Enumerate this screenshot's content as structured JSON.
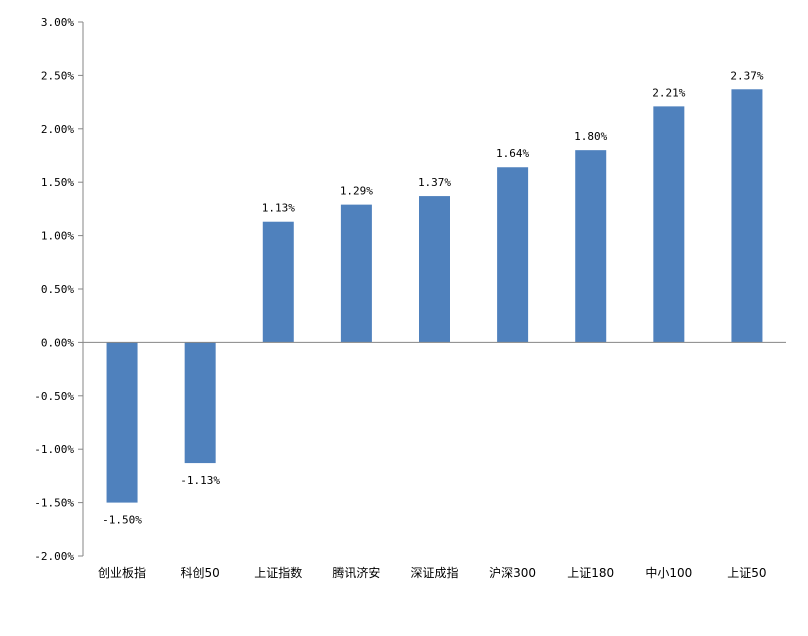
{
  "chart_data": {
    "type": "bar",
    "title": "",
    "xlabel": "",
    "ylabel": "",
    "categories": [
      "创业板指",
      "科创50",
      "上证指数",
      "腾讯济安",
      "深证成指",
      "沪深300",
      "上证180",
      "中小100",
      "上证50"
    ],
    "values": [
      -1.5,
      -1.13,
      1.13,
      1.29,
      1.37,
      1.64,
      1.8,
      2.21,
      2.37
    ],
    "data_labels": [
      "-1.50%",
      "-1.13%",
      "1.13%",
      "1.29%",
      "1.37%",
      "1.64%",
      "1.80%",
      "2.21%",
      "2.37%"
    ],
    "ylim": [
      -2.0,
      3.0
    ],
    "yticks": [
      3.0,
      2.5,
      2.0,
      1.5,
      1.0,
      0.5,
      0.0,
      -0.5,
      -1.0,
      -1.5,
      -2.0
    ],
    "ytick_labels": [
      "3.00%",
      "2.50%",
      "2.00%",
      "1.50%",
      "1.00%",
      "0.50%",
      "0.00%",
      "-0.50%",
      "-1.00%",
      "-1.50%",
      "-2.00%"
    ],
    "grid": false,
    "legend": "none",
    "colors": {
      "bar": "#4f81bd",
      "axis": "#868686"
    }
  }
}
